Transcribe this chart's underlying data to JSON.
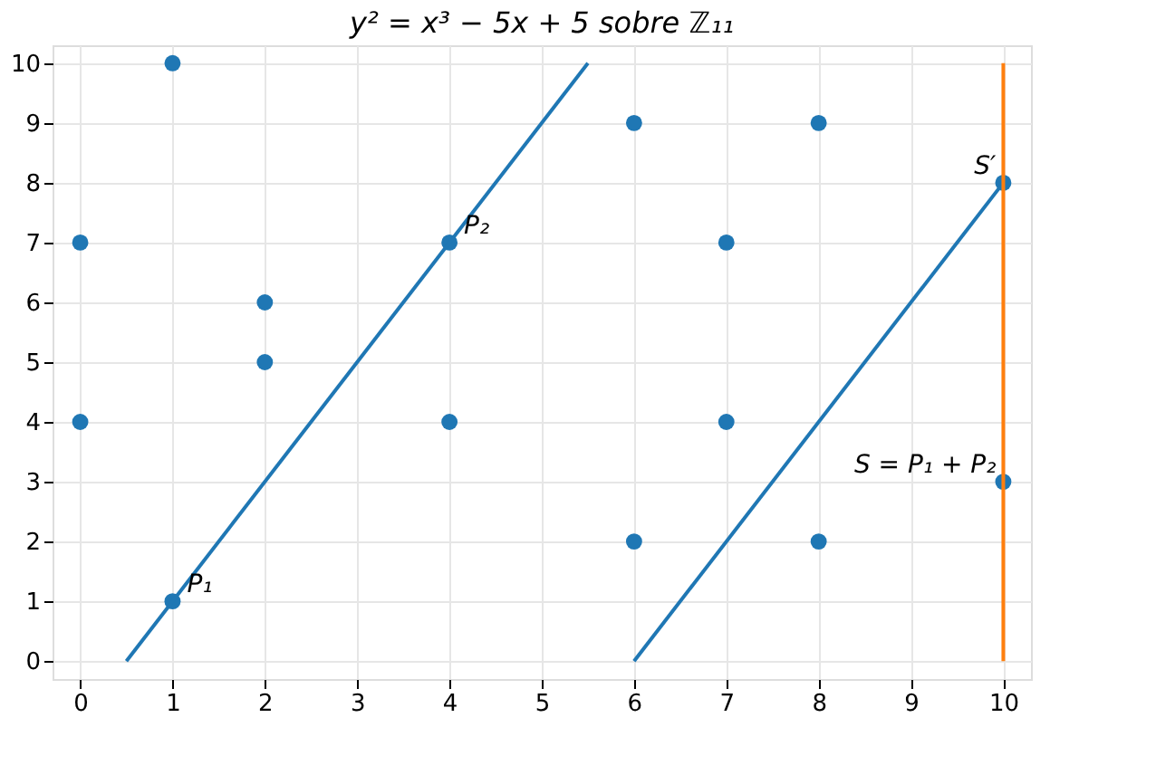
{
  "chart_data": {
    "type": "scatter",
    "title": "y² = x³ − 5x + 5 sobre ℤ₁₁",
    "series": [
      {
        "type": "scatter",
        "marker": "circle",
        "color": "#1f77b4",
        "x": [
          0,
          0,
          1,
          1,
          2,
          2,
          4,
          4,
          6,
          6,
          7,
          7,
          8,
          8,
          10,
          10
        ],
        "values": [
          4,
          7,
          1,
          10,
          5,
          6,
          4,
          7,
          2,
          9,
          4,
          7,
          2,
          9,
          3,
          8
        ]
      },
      {
        "type": "line",
        "marker": "none",
        "color": "#1f77b4",
        "x": [
          0.5,
          5.5
        ],
        "values": [
          0,
          10
        ]
      },
      {
        "type": "line",
        "marker": "none",
        "color": "#1f77b4",
        "x": [
          6,
          10
        ],
        "values": [
          0,
          8
        ]
      },
      {
        "type": "line",
        "marker": "none",
        "color": "#ff7f0e",
        "x": [
          10,
          10
        ],
        "values": [
          0,
          10
        ]
      }
    ],
    "annotations": [
      {
        "text": "P₁",
        "x": 1,
        "y": 1
      },
      {
        "text": "P₂",
        "x": 4,
        "y": 7
      },
      {
        "text": "S′",
        "x": 10,
        "y": 8
      },
      {
        "text": "S = P₁ + P₂",
        "x": 10,
        "y": 3
      }
    ],
    "xlim": [
      -0.3,
      10.3
    ],
    "ylim": [
      -0.3,
      10.3
    ],
    "xticks": [
      0,
      1,
      2,
      3,
      4,
      5,
      6,
      7,
      8,
      9,
      10
    ],
    "yticks": [
      0,
      1,
      2,
      3,
      4,
      5,
      6,
      7,
      8,
      9,
      10
    ],
    "grid": true,
    "line_style": "solid"
  }
}
